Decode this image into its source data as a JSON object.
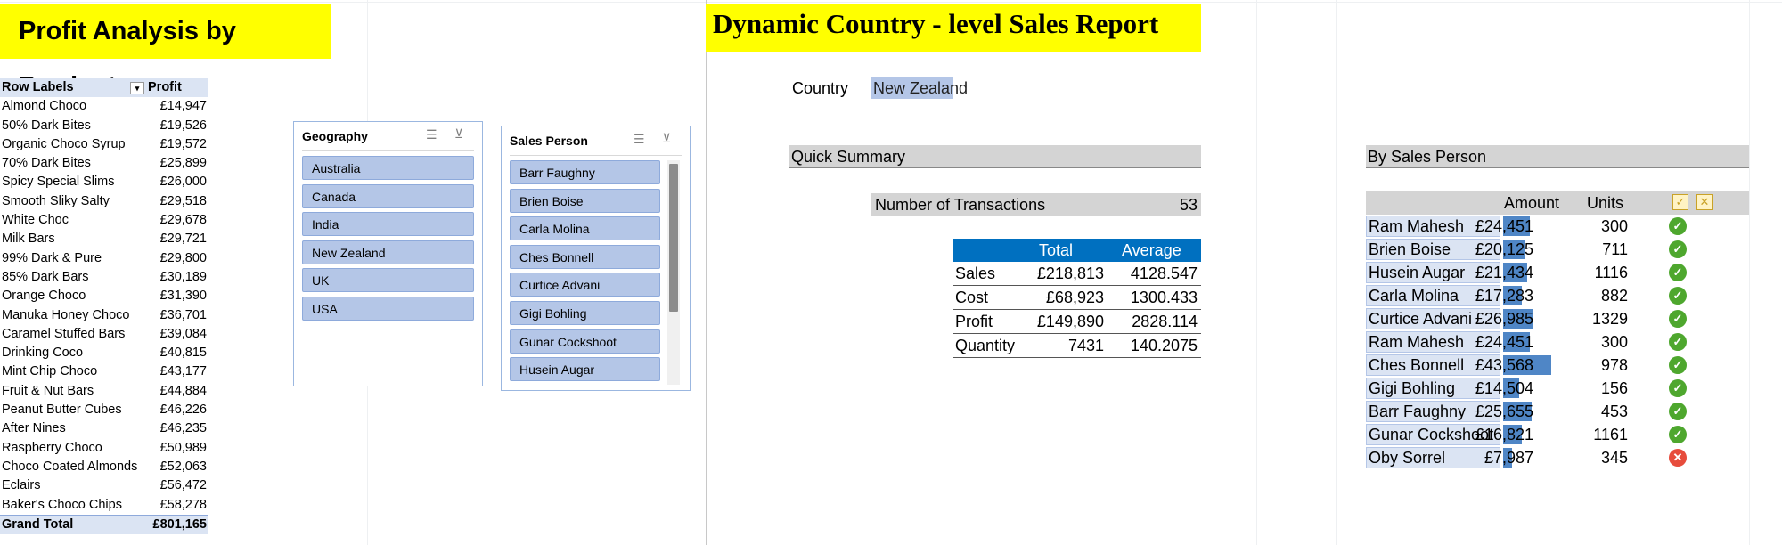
{
  "left_title": "Profit Analysis by Product",
  "right_title": "Dynamic Country - level Sales Report",
  "pivot": {
    "header_label": "Row Labels",
    "header_value": "Profit",
    "rows": [
      {
        "label": "Almond Choco",
        "value": "£14,947"
      },
      {
        "label": "50% Dark Bites",
        "value": "£19,526"
      },
      {
        "label": "Organic Choco Syrup",
        "value": "£19,572"
      },
      {
        "label": "70% Dark Bites",
        "value": "£25,899"
      },
      {
        "label": "Spicy Special Slims",
        "value": "£26,000"
      },
      {
        "label": "Smooth Sliky Salty",
        "value": "£29,518"
      },
      {
        "label": "White Choc",
        "value": "£29,678"
      },
      {
        "label": "Milk Bars",
        "value": "£29,721"
      },
      {
        "label": "99% Dark & Pure",
        "value": "£29,800"
      },
      {
        "label": "85% Dark Bars",
        "value": "£30,189"
      },
      {
        "label": "Orange Choco",
        "value": "£31,390"
      },
      {
        "label": "Manuka Honey Choco",
        "value": "£36,701"
      },
      {
        "label": "Caramel Stuffed Bars",
        "value": "£39,084"
      },
      {
        "label": "Drinking Coco",
        "value": "£40,815"
      },
      {
        "label": "Mint Chip Choco",
        "value": "£43,177"
      },
      {
        "label": "Fruit & Nut Bars",
        "value": "£44,884"
      },
      {
        "label": "Peanut Butter Cubes",
        "value": "£46,226"
      },
      {
        "label": "After Nines",
        "value": "£46,235"
      },
      {
        "label": "Raspberry Choco",
        "value": "£50,989"
      },
      {
        "label": "Choco Coated Almonds",
        "value": "£52,063"
      },
      {
        "label": "Eclairs",
        "value": "£56,472"
      },
      {
        "label": "Baker's Choco Chips",
        "value": "£58,278"
      }
    ],
    "total_label": "Grand Total",
    "total_value": "£801,165"
  },
  "geography_slicer": {
    "title": "Geography",
    "items": [
      "Australia",
      "Canada",
      "India",
      "New Zealand",
      "UK",
      "USA"
    ]
  },
  "salesperson_slicer": {
    "title": "Sales Person",
    "items": [
      "Barr Faughny",
      "Brien Boise",
      "Carla Molina",
      "Ches Bonnell",
      "Curtice Advani",
      "Gigi Bohling",
      "Gunar Cockshoot",
      "Husein Augar"
    ]
  },
  "country": {
    "label": "Country",
    "value": "New Zealand"
  },
  "quick_summary": {
    "title": "Quick Summary",
    "transactions_label": "Number of Transactions",
    "transactions_value": "53",
    "col_total": "Total",
    "col_average": "Average",
    "rows": [
      {
        "label": "Sales",
        "total": "£218,813",
        "average": "4128.547"
      },
      {
        "label": "Cost",
        "total": "£68,923",
        "average": "1300.433"
      },
      {
        "label": "Profit",
        "total": "£149,890",
        "average": "2828.114"
      },
      {
        "label": "Quantity",
        "total": "7431",
        "average": "140.2075"
      }
    ]
  },
  "by_sales_person": {
    "title": "By Sales Person",
    "col_amount": "Amount",
    "col_units": "Units",
    "bar_max": 43568,
    "rows": [
      {
        "name": "Ram Mahesh",
        "amount": "£24,451",
        "amount_value": 24451,
        "units": "300",
        "status": "ok"
      },
      {
        "name": "Brien Boise",
        "amount": "£20,125",
        "amount_value": 20125,
        "units": "711",
        "status": "ok"
      },
      {
        "name": "Husein Augar",
        "amount": "£21,434",
        "amount_value": 21434,
        "units": "1116",
        "status": "ok"
      },
      {
        "name": "Carla Molina",
        "amount": "£17,283",
        "amount_value": 17283,
        "units": "882",
        "status": "ok"
      },
      {
        "name": "Curtice Advani",
        "amount": "£26,985",
        "amount_value": 26985,
        "units": "1329",
        "status": "ok"
      },
      {
        "name": "Ram Mahesh",
        "amount": "£24,451",
        "amount_value": 24451,
        "units": "300",
        "status": "ok"
      },
      {
        "name": "Ches Bonnell",
        "amount": "£43,568",
        "amount_value": 43568,
        "units": "978",
        "status": "ok"
      },
      {
        "name": "Gigi Bohling",
        "amount": "£14,504",
        "amount_value": 14504,
        "units": "156",
        "status": "ok"
      },
      {
        "name": "Barr Faughny",
        "amount": "£25,655",
        "amount_value": 25655,
        "units": "453",
        "status": "ok"
      },
      {
        "name": "Gunar Cockshoot",
        "amount": "£16,821",
        "amount_value": 16821,
        "units": "1161",
        "status": "ok"
      },
      {
        "name": "Oby Sorrel",
        "amount": "£7,987",
        "amount_value": 7987,
        "units": "345",
        "status": "bad"
      }
    ]
  },
  "colors": {
    "title_fill": "#ffff00",
    "header_blue": "#0070c0",
    "bar_blue": "#4f86c6",
    "ok_green": "#4ea72e",
    "bad_red": "#e74c3c"
  }
}
